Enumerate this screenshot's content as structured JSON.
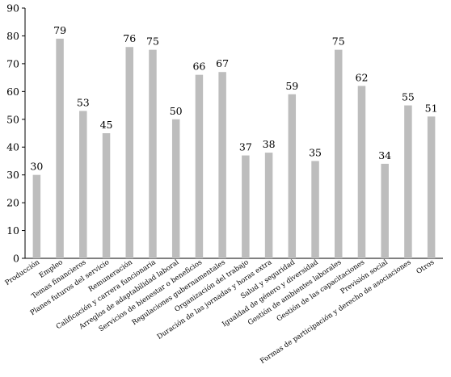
{
  "chart_data": {
    "type": "bar",
    "title": "",
    "xlabel": "",
    "ylabel": "",
    "ylim": [
      0,
      90
    ],
    "yticks": [
      0,
      10,
      20,
      30,
      40,
      50,
      60,
      70,
      80,
      90
    ],
    "grid": false,
    "legend": "none",
    "bar_color": "#bdbdbd",
    "categories": [
      "Producción",
      "Empleo",
      "Temas financieros",
      "Planes futuros del servicio",
      "Remuneración",
      "Calificación y carrera funcionaria",
      "Arreglos de adaptabilidad laboral",
      "Servicios de bienestar o beneficios",
      "Regulaciones gubernamentales",
      "Organización del trabajo",
      "Duración de las jornadas y horas extra",
      "Salud y seguridad",
      "Igualdad de género y diversidad",
      "Gestión de ambientes laborales",
      "Gestión de las capacitaciones",
      "Previsión social",
      "Formas de participación y derecho de asociaciones",
      "Otros"
    ],
    "values": [
      30,
      79,
      53,
      45,
      76,
      75,
      50,
      66,
      67,
      37,
      38,
      59,
      35,
      75,
      62,
      34,
      55,
      51
    ]
  }
}
